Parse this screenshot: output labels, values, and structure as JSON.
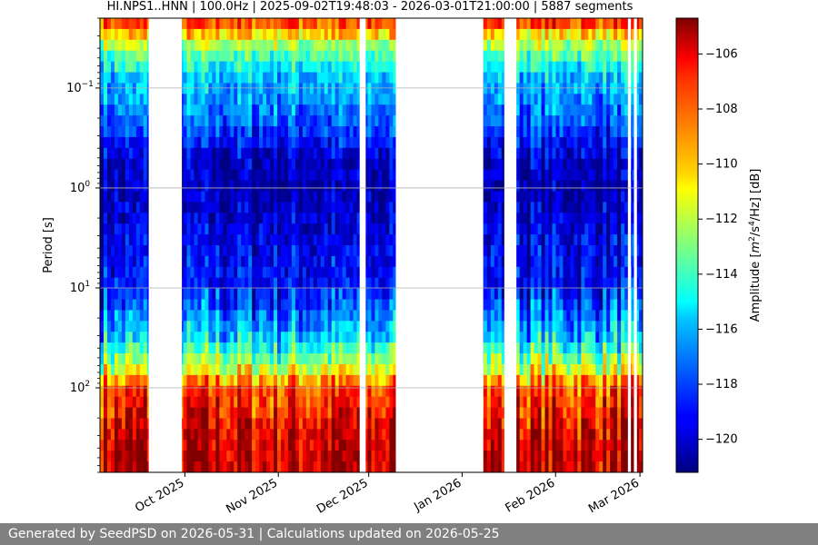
{
  "footer": {
    "text": "Generated by SeedPSD on 2026-05-31 | Calculations updated on 2026-05-25"
  },
  "chart_data": {
    "type": "heatmap",
    "title": "HI.NPS1..HNN | 100.0Hz | 2025-09-02T19:48:03 - 2026-03-01T21:00:00 | 5887 segments",
    "xlabel": "",
    "ylabel": "Period [s]",
    "x_range": [
      "2025-09-02T19:48:03",
      "2026-03-01T21:00:00"
    ],
    "x_ticks": [
      {
        "date": "2025-10-01",
        "label": "Oct 2025"
      },
      {
        "date": "2025-11-01",
        "label": "Nov 2025"
      },
      {
        "date": "2025-12-01",
        "label": "Dec 2025"
      },
      {
        "date": "2026-01-01",
        "label": "Jan 2026"
      },
      {
        "date": "2026-02-01",
        "label": "Feb 2026"
      },
      {
        "date": "2026-03-01",
        "label": "Mar 2026"
      }
    ],
    "y_scale": "log",
    "y_inverted": true,
    "y_range": [
      0.02,
      700
    ],
    "y_ticks": [
      {
        "value": 0.1,
        "label": "10^-1"
      },
      {
        "value": 1,
        "label": "10^0"
      },
      {
        "value": 10,
        "label": "10^1"
      },
      {
        "value": 100,
        "label": "10^2"
      }
    ],
    "grid": true,
    "colormap": "jet",
    "colorbar": {
      "label": "Amplitude [m^2/s^4/Hz] [dB]",
      "range": [
        -121.2,
        -104.7
      ],
      "ticks": [
        -106,
        -108,
        -110,
        -112,
        -114,
        -116,
        -118,
        -120
      ]
    },
    "data_gaps": [
      [
        "2025-09-19",
        "2025-09-20"
      ],
      [
        "2025-09-20",
        "2025-09-30"
      ],
      [
        "2025-11-28",
        "2025-11-30"
      ],
      [
        "2025-12-10",
        "2026-01-08"
      ],
      [
        "2026-01-15",
        "2026-01-19"
      ],
      [
        "2026-02-25",
        "2026-02-26"
      ],
      [
        "2026-02-27",
        "2026-02-28"
      ]
    ],
    "amplitude_profile": [
      {
        "period": 0.02,
        "db": -107
      },
      {
        "period": 0.04,
        "db": -113
      },
      {
        "period": 0.08,
        "db": -116
      },
      {
        "period": 0.2,
        "db": -117.5
      },
      {
        "period": 0.5,
        "db": -120
      },
      {
        "period": 1.0,
        "db": -120.5
      },
      {
        "period": 3,
        "db": -119.5
      },
      {
        "period": 10,
        "db": -119
      },
      {
        "period": 30,
        "db": -116
      },
      {
        "period": 60,
        "db": -112
      },
      {
        "period": 100,
        "db": -108
      },
      {
        "period": 300,
        "db": -106
      },
      {
        "period": 700,
        "db": -105.5
      }
    ]
  }
}
